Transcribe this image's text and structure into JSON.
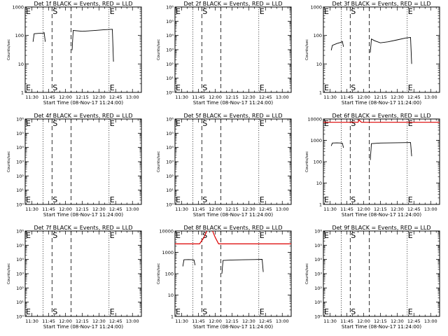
{
  "figure": {
    "background": "#ffffff",
    "colors": {
      "axes": "#000000",
      "events": "#000000",
      "lld": "#dd0000"
    }
  },
  "chart_data": [
    {
      "type": "line",
      "title": "Det 1f BLACK = Events, RED = LLD",
      "xlabel": "Start Time (08-Nov-17 11:24:00)",
      "ylabel": "Counts/sec",
      "xlim": [
        "11:24",
        "13:08"
      ],
      "xticks": [
        "11:30",
        "11:45",
        "12:00",
        "12:15",
        "12:30",
        "12:45",
        "13:00"
      ],
      "yscale": "log",
      "ylim": [
        1,
        1000
      ],
      "yticks": [
        "1",
        "10",
        "100",
        "1000"
      ],
      "markers": [
        {
          "label": "E",
          "time": "11:24",
          "style": "dotted"
        },
        {
          "label": "",
          "time": "11:40",
          "style": "dotted"
        },
        {
          "label": "S",
          "time": "11:48",
          "style": "dashed"
        },
        {
          "label": "",
          "time": "12:05",
          "style": "dashed"
        },
        {
          "label": "E",
          "time": "12:39",
          "style": "dotted"
        }
      ],
      "series": [
        {
          "color": "black",
          "points": [
            [
              "11:31",
              60
            ],
            [
              "11:32",
              115
            ],
            [
              "11:36",
              118
            ],
            [
              "11:40",
              120
            ],
            [
              "11:41",
              125
            ],
            [
              "11:42",
              60
            ]
          ]
        },
        {
          "color": "black",
          "points": [
            [
              "12:06",
              30
            ],
            [
              "12:07",
              150
            ],
            [
              "12:15",
              140
            ],
            [
              "12:25",
              148
            ],
            [
              "12:35",
              160
            ],
            [
              "12:42",
              165
            ],
            [
              "12:43",
              12
            ]
          ]
        }
      ]
    },
    {
      "type": "line",
      "title": "Det 2f BLACK = Events, RED = LLD",
      "xlabel": "Start Time (08-Nov-17 11:24:00)",
      "ylabel": "Counts/sec",
      "xlim": [
        "11:24",
        "13:08"
      ],
      "xticks": [
        "11:30",
        "11:45",
        "12:00",
        "12:15",
        "12:30",
        "12:45",
        "13:00"
      ],
      "yscale": "log",
      "ylim": [
        1,
        1000000
      ],
      "yticks": [
        "10⁰",
        "10¹",
        "10²",
        "10³",
        "10⁴",
        "10⁵",
        "10⁶"
      ],
      "markers": [
        {
          "label": "E",
          "time": "11:24",
          "style": "dotted"
        },
        {
          "label": "",
          "time": "11:40",
          "style": "dotted"
        },
        {
          "label": "S",
          "time": "11:48",
          "style": "dashed"
        },
        {
          "label": "",
          "time": "12:05",
          "style": "dashed"
        },
        {
          "label": "E",
          "time": "12:39",
          "style": "dotted"
        }
      ],
      "series": []
    },
    {
      "type": "line",
      "title": "Det 3f BLACK = Events, RED = LLD",
      "xlabel": "Start Time (08-Nov-17 11:24:00)",
      "ylabel": "Counts/sec",
      "xlim": [
        "11:24",
        "13:08"
      ],
      "xticks": [
        "11:30",
        "11:45",
        "12:00",
        "12:15",
        "12:30",
        "12:45",
        "13:00"
      ],
      "yscale": "log",
      "ylim": [
        1,
        1000
      ],
      "yticks": [
        "1",
        "10",
        "100",
        "1000"
      ],
      "markers": [
        {
          "label": "E",
          "time": "11:24",
          "style": "dotted"
        },
        {
          "label": "",
          "time": "11:40",
          "style": "dotted"
        },
        {
          "label": "S",
          "time": "11:48",
          "style": "dashed"
        },
        {
          "label": "",
          "time": "12:05",
          "style": "dashed"
        },
        {
          "label": "E",
          "time": "12:39",
          "style": "dotted"
        }
      ],
      "series": [
        {
          "color": "black",
          "points": [
            [
              "11:31",
              30
            ],
            [
              "11:32",
              45
            ],
            [
              "11:36",
              52
            ],
            [
              "11:40",
              58
            ],
            [
              "11:41",
              62
            ],
            [
              "11:42",
              40
            ]
          ]
        },
        {
          "color": "black",
          "points": [
            [
              "12:06",
              25
            ],
            [
              "12:07",
              75
            ],
            [
              "12:10",
              65
            ],
            [
              "12:15",
              55
            ],
            [
              "12:22",
              60
            ],
            [
              "12:30",
              70
            ],
            [
              "12:38",
              82
            ],
            [
              "12:42",
              85
            ],
            [
              "12:43",
              10
            ]
          ]
        }
      ]
    },
    {
      "type": "line",
      "title": "Det 4f BLACK = Events, RED = LLD",
      "xlabel": "Start Time (08-Nov-17 11:24:00)",
      "ylabel": "Counts/sec",
      "xlim": [
        "11:24",
        "13:08"
      ],
      "xticks": [
        "11:30",
        "11:45",
        "12:00",
        "12:15",
        "12:30",
        "12:45",
        "13:00"
      ],
      "yscale": "log",
      "ylim": [
        1,
        1000000
      ],
      "yticks": [
        "10⁰",
        "10¹",
        "10²",
        "10³",
        "10⁴",
        "10⁵",
        "10⁶"
      ],
      "markers": [
        {
          "label": "E",
          "time": "11:24",
          "style": "dotted"
        },
        {
          "label": "",
          "time": "11:40",
          "style": "dotted"
        },
        {
          "label": "S",
          "time": "11:48",
          "style": "dashed"
        },
        {
          "label": "",
          "time": "12:05",
          "style": "dashed"
        },
        {
          "label": "E",
          "time": "12:39",
          "style": "dotted"
        }
      ],
      "series": []
    },
    {
      "type": "line",
      "title": "Det 5f BLACK = Events, RED = LLD",
      "xlabel": "Start Time (08-Nov-17 11:24:00)",
      "ylabel": "Counts/sec",
      "xlim": [
        "11:24",
        "13:08"
      ],
      "xticks": [
        "11:30",
        "11:45",
        "12:00",
        "12:15",
        "12:30",
        "12:45",
        "13:00"
      ],
      "yscale": "log",
      "ylim": [
        1,
        1000000
      ],
      "yticks": [
        "10⁰",
        "10¹",
        "10²",
        "10³",
        "10⁴",
        "10⁵",
        "10⁶"
      ],
      "markers": [
        {
          "label": "E",
          "time": "11:24",
          "style": "dotted"
        },
        {
          "label": "",
          "time": "11:40",
          "style": "dotted"
        },
        {
          "label": "S",
          "time": "11:48",
          "style": "dashed"
        },
        {
          "label": "",
          "time": "12:05",
          "style": "dashed"
        },
        {
          "label": "E",
          "time": "12:39",
          "style": "dotted"
        }
      ],
      "series": []
    },
    {
      "type": "line",
      "title": "Det 6f BLACK = Events, RED = LLD",
      "xlabel": "Start Time (08-Nov-17 11:24:00)",
      "ylabel": "Counts/sec",
      "xlim": [
        "11:24",
        "13:08"
      ],
      "xticks": [
        "11:30",
        "11:45",
        "12:00",
        "12:15",
        "12:30",
        "12:45",
        "13:00"
      ],
      "yscale": "log",
      "ylim": [
        1,
        10000
      ],
      "yticks": [
        "1",
        "10",
        "100",
        "1000",
        "10000"
      ],
      "markers": [
        {
          "label": "E",
          "time": "11:24",
          "style": "dotted"
        },
        {
          "label": "",
          "time": "11:40",
          "style": "dotted"
        },
        {
          "label": "S",
          "time": "11:48",
          "style": "dashed"
        },
        {
          "label": "",
          "time": "12:05",
          "style": "dashed"
        },
        {
          "label": "E",
          "time": "12:39",
          "style": "dotted"
        }
      ],
      "series": [
        {
          "color": "red",
          "points": [
            [
              "11:24",
              7000
            ],
            [
              "11:55",
              7000
            ],
            [
              "11:56",
              9000
            ],
            [
              "11:58",
              7000
            ],
            [
              "13:08",
              7000
            ]
          ]
        },
        {
          "color": "black",
          "points": [
            [
              "11:31",
              550
            ],
            [
              "11:32",
              750
            ],
            [
              "11:36",
              760
            ],
            [
              "11:40",
              750
            ],
            [
              "11:41",
              740
            ],
            [
              "11:42",
              450
            ]
          ]
        },
        {
          "color": "black",
          "points": [
            [
              "12:06",
              120
            ],
            [
              "12:07",
              700
            ],
            [
              "12:15",
              750
            ],
            [
              "12:25",
              760
            ],
            [
              "12:35",
              780
            ],
            [
              "12:42",
              790
            ],
            [
              "12:43",
              180
            ]
          ]
        }
      ]
    },
    {
      "type": "line",
      "title": "Det 7f BLACK = Events, RED = LLD",
      "xlabel": "Start Time (08-Nov-17 11:24:00)",
      "ylabel": "Counts/sec",
      "xlim": [
        "11:24",
        "13:08"
      ],
      "xticks": [
        "11:30",
        "11:45",
        "12:00",
        "12:15",
        "12:30",
        "12:45",
        "13:00"
      ],
      "yscale": "log",
      "ylim": [
        1,
        1000000
      ],
      "yticks": [
        "10⁰",
        "10¹",
        "10²",
        "10³",
        "10⁴",
        "10⁵",
        "10⁶"
      ],
      "markers": [
        {
          "label": "E",
          "time": "11:24",
          "style": "dotted"
        },
        {
          "label": "",
          "time": "11:40",
          "style": "dotted"
        },
        {
          "label": "S",
          "time": "11:48",
          "style": "dashed"
        },
        {
          "label": "",
          "time": "12:05",
          "style": "dashed"
        },
        {
          "label": "E",
          "time": "12:39",
          "style": "dotted"
        }
      ],
      "series": []
    },
    {
      "type": "line",
      "title": "Det 8f BLACK = Events, RED = LLD",
      "xlabel": "Start Time (08-Nov-17 11:24:00)",
      "ylabel": "Counts/sec",
      "xlim": [
        "11:24",
        "13:08"
      ],
      "xticks": [
        "11:30",
        "11:45",
        "12:00",
        "12:15",
        "12:30",
        "12:45",
        "13:00"
      ],
      "yscale": "log",
      "ylim": [
        1,
        10000
      ],
      "yticks": [
        "1",
        "10",
        "100",
        "1000",
        "10000"
      ],
      "markers": [
        {
          "label": "E",
          "time": "11:24",
          "style": "dotted"
        },
        {
          "label": "",
          "time": "11:40",
          "style": "dotted"
        },
        {
          "label": "S",
          "time": "11:48",
          "style": "dashed"
        },
        {
          "label": "",
          "time": "12:05",
          "style": "dashed"
        },
        {
          "label": "E",
          "time": "12:39",
          "style": "dotted"
        }
      ],
      "series": [
        {
          "color": "red",
          "points": [
            [
              "11:24",
              2500
            ],
            [
              "11:46",
              2500
            ],
            [
              "11:50",
              5000
            ],
            [
              "11:53",
              12000
            ],
            [
              "11:57",
              12000
            ],
            [
              "12:00",
              5000
            ],
            [
              "12:03",
              2500
            ],
            [
              "13:08",
              2500
            ]
          ]
        },
        {
          "color": "black",
          "points": [
            [
              "11:31",
              220
            ],
            [
              "11:32",
              450
            ],
            [
              "11:36",
              460
            ],
            [
              "11:40",
              450
            ],
            [
              "11:41",
              440
            ],
            [
              "11:42",
              250
            ]
          ]
        },
        {
          "color": "black",
          "points": [
            [
              "12:06",
              100
            ],
            [
              "12:07",
              420
            ],
            [
              "12:15",
              440
            ],
            [
              "12:25",
              450
            ],
            [
              "12:35",
              460
            ],
            [
              "12:42",
              470
            ],
            [
              "12:43",
              120
            ]
          ]
        }
      ]
    },
    {
      "type": "line",
      "title": "Det 9f BLACK = Events, RED = LLD",
      "xlabel": "Start Time (08-Nov-17 11:24:00)",
      "ylabel": "Counts/sec",
      "xlim": [
        "11:24",
        "13:08"
      ],
      "xticks": [
        "11:30",
        "11:45",
        "12:00",
        "12:15",
        "12:30",
        "12:45",
        "13:00"
      ],
      "yscale": "log",
      "ylim": [
        1,
        1000000
      ],
      "yticks": [
        "10⁰",
        "10¹",
        "10²",
        "10³",
        "10⁴",
        "10⁵",
        "10⁶"
      ],
      "markers": [
        {
          "label": "E",
          "time": "11:24",
          "style": "dotted"
        },
        {
          "label": "",
          "time": "11:40",
          "style": "dotted"
        },
        {
          "label": "S",
          "time": "11:48",
          "style": "dashed"
        },
        {
          "label": "",
          "time": "12:05",
          "style": "dashed"
        },
        {
          "label": "E",
          "time": "12:39",
          "style": "dotted"
        }
      ],
      "series": []
    }
  ]
}
